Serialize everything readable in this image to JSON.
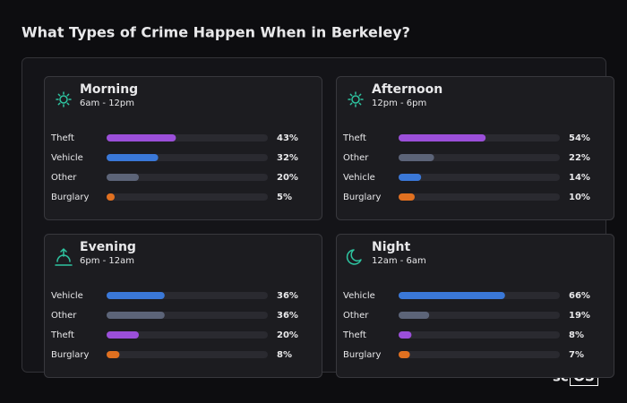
{
  "title": "What Types of Crime Happen When in Berkeley?",
  "watermark": {
    "prefix": "sc",
    "boxed": "OS",
    "mark": "®"
  },
  "chart_data": [
    {
      "type": "hbar",
      "title": "Morning",
      "subtitle": "6am - 12pm",
      "categories": [
        "Theft",
        "Vehicle",
        "Other",
        "Burglary"
      ],
      "values": [
        43,
        32,
        20,
        5
      ],
      "value_labels": [
        "43%",
        "32%",
        "20%",
        "5%"
      ],
      "colors": [
        "#9b4fd9",
        "#3a78d8",
        "#5c6478",
        "#e07020"
      ],
      "xlim": [
        0,
        100
      ]
    },
    {
      "type": "hbar",
      "title": "Afternoon",
      "subtitle": "12pm - 6pm",
      "categories": [
        "Theft",
        "Other",
        "Vehicle",
        "Burglary"
      ],
      "values": [
        54,
        22,
        14,
        10
      ],
      "value_labels": [
        "54%",
        "22%",
        "14%",
        "10%"
      ],
      "colors": [
        "#9b4fd9",
        "#5c6478",
        "#3a78d8",
        "#e07020"
      ],
      "xlim": [
        0,
        100
      ]
    },
    {
      "type": "hbar",
      "title": "Evening",
      "subtitle": "6pm - 12am",
      "categories": [
        "Vehicle",
        "Other",
        "Theft",
        "Burglary"
      ],
      "values": [
        36,
        36,
        20,
        8
      ],
      "value_labels": [
        "36%",
        "36%",
        "20%",
        "8%"
      ],
      "colors": [
        "#3a78d8",
        "#5c6478",
        "#9b4fd9",
        "#e07020"
      ],
      "xlim": [
        0,
        100
      ]
    },
    {
      "type": "hbar",
      "title": "Night",
      "subtitle": "12am - 6am",
      "categories": [
        "Vehicle",
        "Other",
        "Theft",
        "Burglary"
      ],
      "values": [
        66,
        19,
        8,
        7
      ],
      "value_labels": [
        "66%",
        "19%",
        "8%",
        "7%"
      ],
      "colors": [
        "#3a78d8",
        "#5c6478",
        "#9b4fd9",
        "#e07020"
      ],
      "xlim": [
        0,
        100
      ]
    }
  ]
}
